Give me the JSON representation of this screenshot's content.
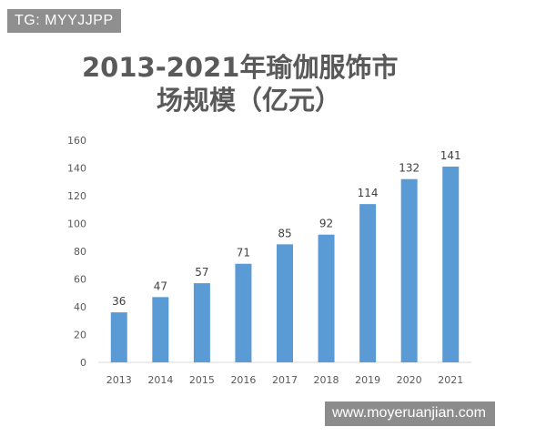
{
  "tag": "TG: MYYJJPP",
  "watermark": "www.moyeruanjian.com",
  "colors": {
    "bar": "#5b9bd5",
    "text": "#595959",
    "axis": "#d9d9d9"
  },
  "chart_data": {
    "type": "bar",
    "title_line1": "2013-2021年瑜伽服饰市",
    "title_line2": "场规模（亿元）",
    "categories": [
      "2013",
      "2014",
      "2015",
      "2016",
      "2017",
      "2018",
      "2019",
      "2020",
      "2021"
    ],
    "values": [
      36,
      47,
      57,
      71,
      85,
      92,
      114,
      132,
      141
    ],
    "yticks": [
      0,
      20,
      40,
      60,
      80,
      100,
      120,
      140,
      160
    ],
    "ylim": [
      0,
      160
    ],
    "grid": false,
    "legend": "none",
    "data_labels": true
  }
}
